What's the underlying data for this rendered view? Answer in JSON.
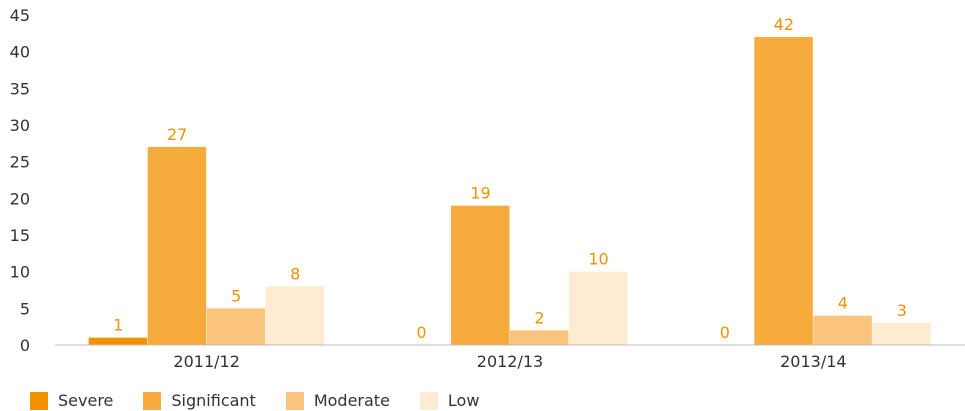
{
  "chart_data": {
    "type": "bar",
    "categories": [
      "2011/12",
      "2012/13",
      "2013/14"
    ],
    "series": [
      {
        "name": "Severe",
        "color": "#f39200",
        "values": [
          1,
          0,
          0
        ]
      },
      {
        "name": "Significant",
        "color": "#f7ab3c",
        "values": [
          27,
          19,
          42
        ]
      },
      {
        "name": "Moderate",
        "color": "#fbc47d",
        "values": [
          5,
          2,
          4
        ]
      },
      {
        "name": "Low",
        "color": "#fdebd2",
        "values": [
          8,
          10,
          3
        ]
      }
    ],
    "ylim": [
      0,
      45
    ],
    "yticks": [
      0,
      5,
      10,
      15,
      20,
      25,
      30,
      35,
      40,
      45
    ],
    "data_label_color": "#f39200",
    "grid": false,
    "legend_position": "bottom-left"
  }
}
